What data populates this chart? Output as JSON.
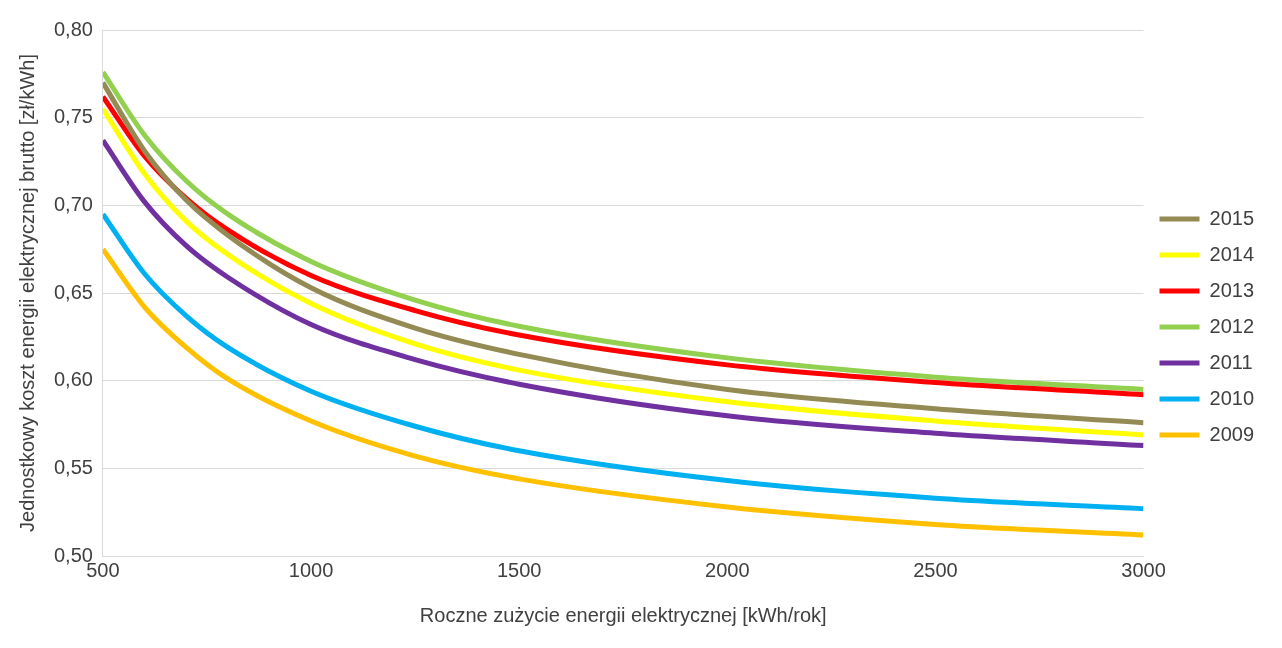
{
  "chart_data": {
    "type": "line",
    "xlabel": "Roczne zużycie energii elektrycznej [kWh/rok]",
    "ylabel": "Jednostkowy koszt energii elektrycznej brutto [zł/kWh]",
    "x": [
      500,
      600,
      700,
      800,
      1000,
      1250,
      1500,
      2000,
      2500,
      3000
    ],
    "xlim": [
      500,
      3000
    ],
    "xticks": [
      500,
      1000,
      1500,
      2000,
      2500,
      3000
    ],
    "ylim": [
      0.5,
      0.8
    ],
    "yticks": [
      {
        "value": 0.5,
        "label": "0,50"
      },
      {
        "value": 0.55,
        "label": "0,55"
      },
      {
        "value": 0.6,
        "label": "0,60"
      },
      {
        "value": 0.65,
        "label": "0,65"
      },
      {
        "value": 0.7,
        "label": "0,70"
      },
      {
        "value": 0.75,
        "label": "0,75"
      },
      {
        "value": 0.8,
        "label": "0,80"
      }
    ],
    "grid": "y",
    "legend": "right",
    "marker": "none",
    "line_style": "solid",
    "series": [
      {
        "name": "2015",
        "color": "#948a54",
        "values": [
          0.77,
          0.731,
          0.703,
          0.683,
          0.653,
          0.63,
          0.615,
          0.595,
          0.584,
          0.576
        ]
      },
      {
        "name": "2014",
        "color": "#ffff00",
        "values": [
          0.755,
          0.718,
          0.691,
          0.672,
          0.644,
          0.621,
          0.606,
          0.588,
          0.577,
          0.569
        ]
      },
      {
        "name": "2013",
        "color": "#ff0000",
        "values": [
          0.762,
          0.728,
          0.704,
          0.686,
          0.66,
          0.64,
          0.626,
          0.609,
          0.599,
          0.592
        ]
      },
      {
        "name": "2012",
        "color": "#92d050",
        "values": [
          0.776,
          0.74,
          0.714,
          0.695,
          0.668,
          0.646,
          0.631,
          0.613,
          0.602,
          0.595
        ]
      },
      {
        "name": "2011",
        "color": "#7030a0",
        "values": [
          0.737,
          0.702,
          0.677,
          0.659,
          0.632,
          0.612,
          0.598,
          0.58,
          0.57,
          0.563
        ]
      },
      {
        "name": "2010",
        "color": "#00b0f0",
        "values": [
          0.695,
          0.661,
          0.637,
          0.619,
          0.594,
          0.574,
          0.56,
          0.543,
          0.533,
          0.527
        ]
      },
      {
        "name": "2009",
        "color": "#ffc000",
        "values": [
          0.675,
          0.642,
          0.619,
          0.601,
          0.577,
          0.557,
          0.544,
          0.528,
          0.518,
          0.512
        ]
      }
    ]
  }
}
